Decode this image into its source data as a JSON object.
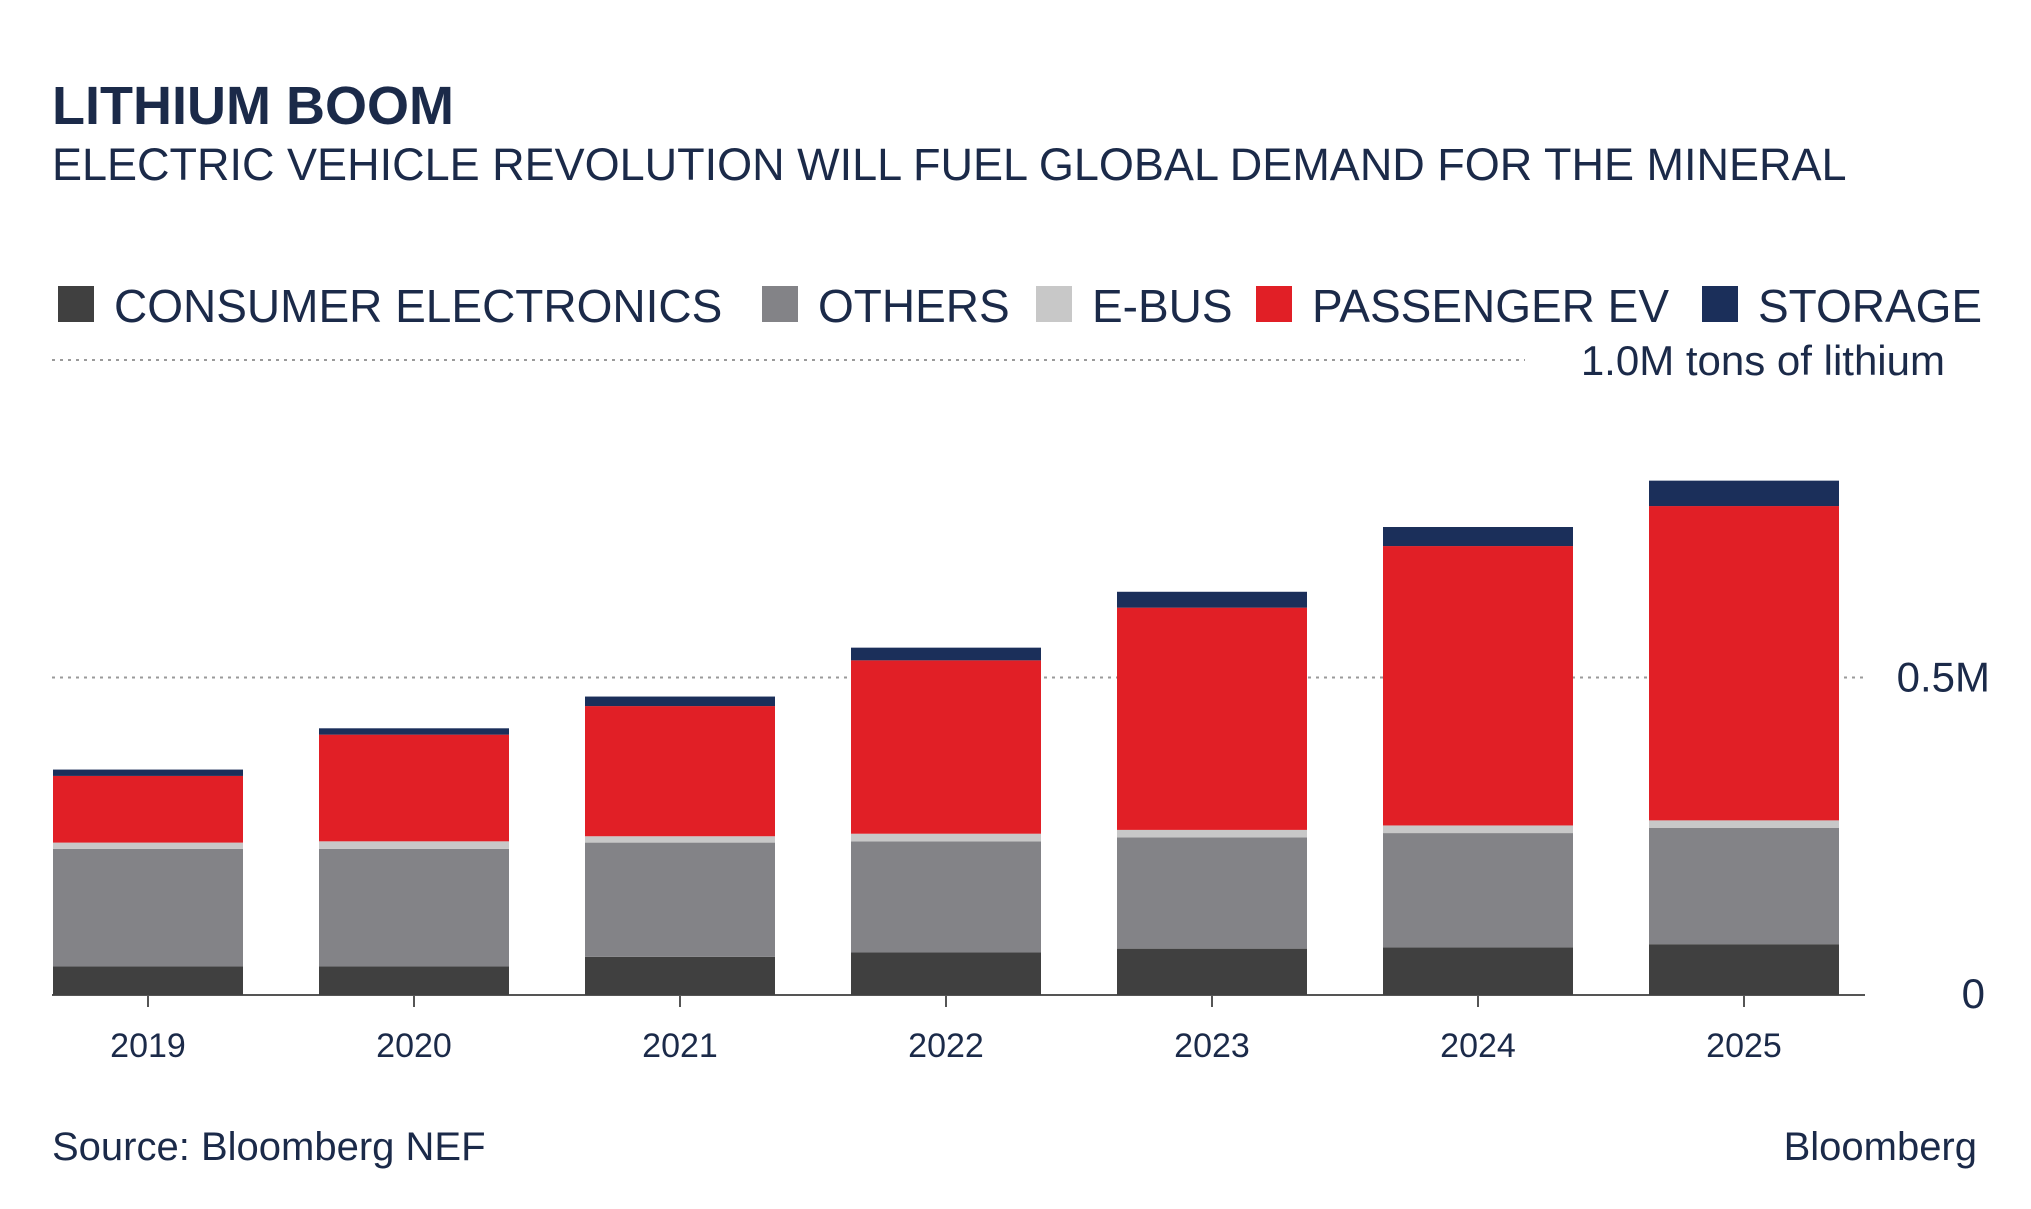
{
  "chart_data": {
    "type": "bar",
    "stacked": true,
    "title": "LITHIUM BOOM",
    "subtitle": "ELECTRIC VEHICLE REVOLUTION WILL FUEL GLOBAL DEMAND FOR THE MINERAL",
    "categories": [
      "2019",
      "2020",
      "2021",
      "2022",
      "2023",
      "2024",
      "2025"
    ],
    "series": [
      {
        "name": "CONSUMER ELECTRONICS",
        "color": "#404040",
        "values": [
          0.045,
          0.045,
          0.06,
          0.067,
          0.073,
          0.075,
          0.08
        ]
      },
      {
        "name": "OTHERS",
        "color": "#838387",
        "values": [
          0.185,
          0.185,
          0.18,
          0.175,
          0.175,
          0.18,
          0.183
        ]
      },
      {
        "name": "E-BUS",
        "color": "#c8c8c8",
        "values": [
          0.01,
          0.012,
          0.01,
          0.012,
          0.012,
          0.012,
          0.012
        ]
      },
      {
        "name": "PASSENGER EV",
        "color": "#e11f26",
        "values": [
          0.105,
          0.168,
          0.205,
          0.273,
          0.35,
          0.44,
          0.495
        ]
      },
      {
        "name": "STORAGE",
        "color": "#1b2f5a",
        "values": [
          0.01,
          0.01,
          0.015,
          0.02,
          0.025,
          0.03,
          0.04
        ]
      }
    ],
    "ylim": [
      0,
      1.0
    ],
    "y_ticks": [
      {
        "value": 0,
        "label": "0"
      },
      {
        "value": 0.5,
        "label": "0.5M"
      },
      {
        "value": 1.0,
        "label": "1.0M tons of lithium"
      }
    ],
    "legend_position": "top",
    "grid": true
  },
  "footer": {
    "source": "Source: Bloomberg NEF",
    "brand": "Bloomberg"
  }
}
